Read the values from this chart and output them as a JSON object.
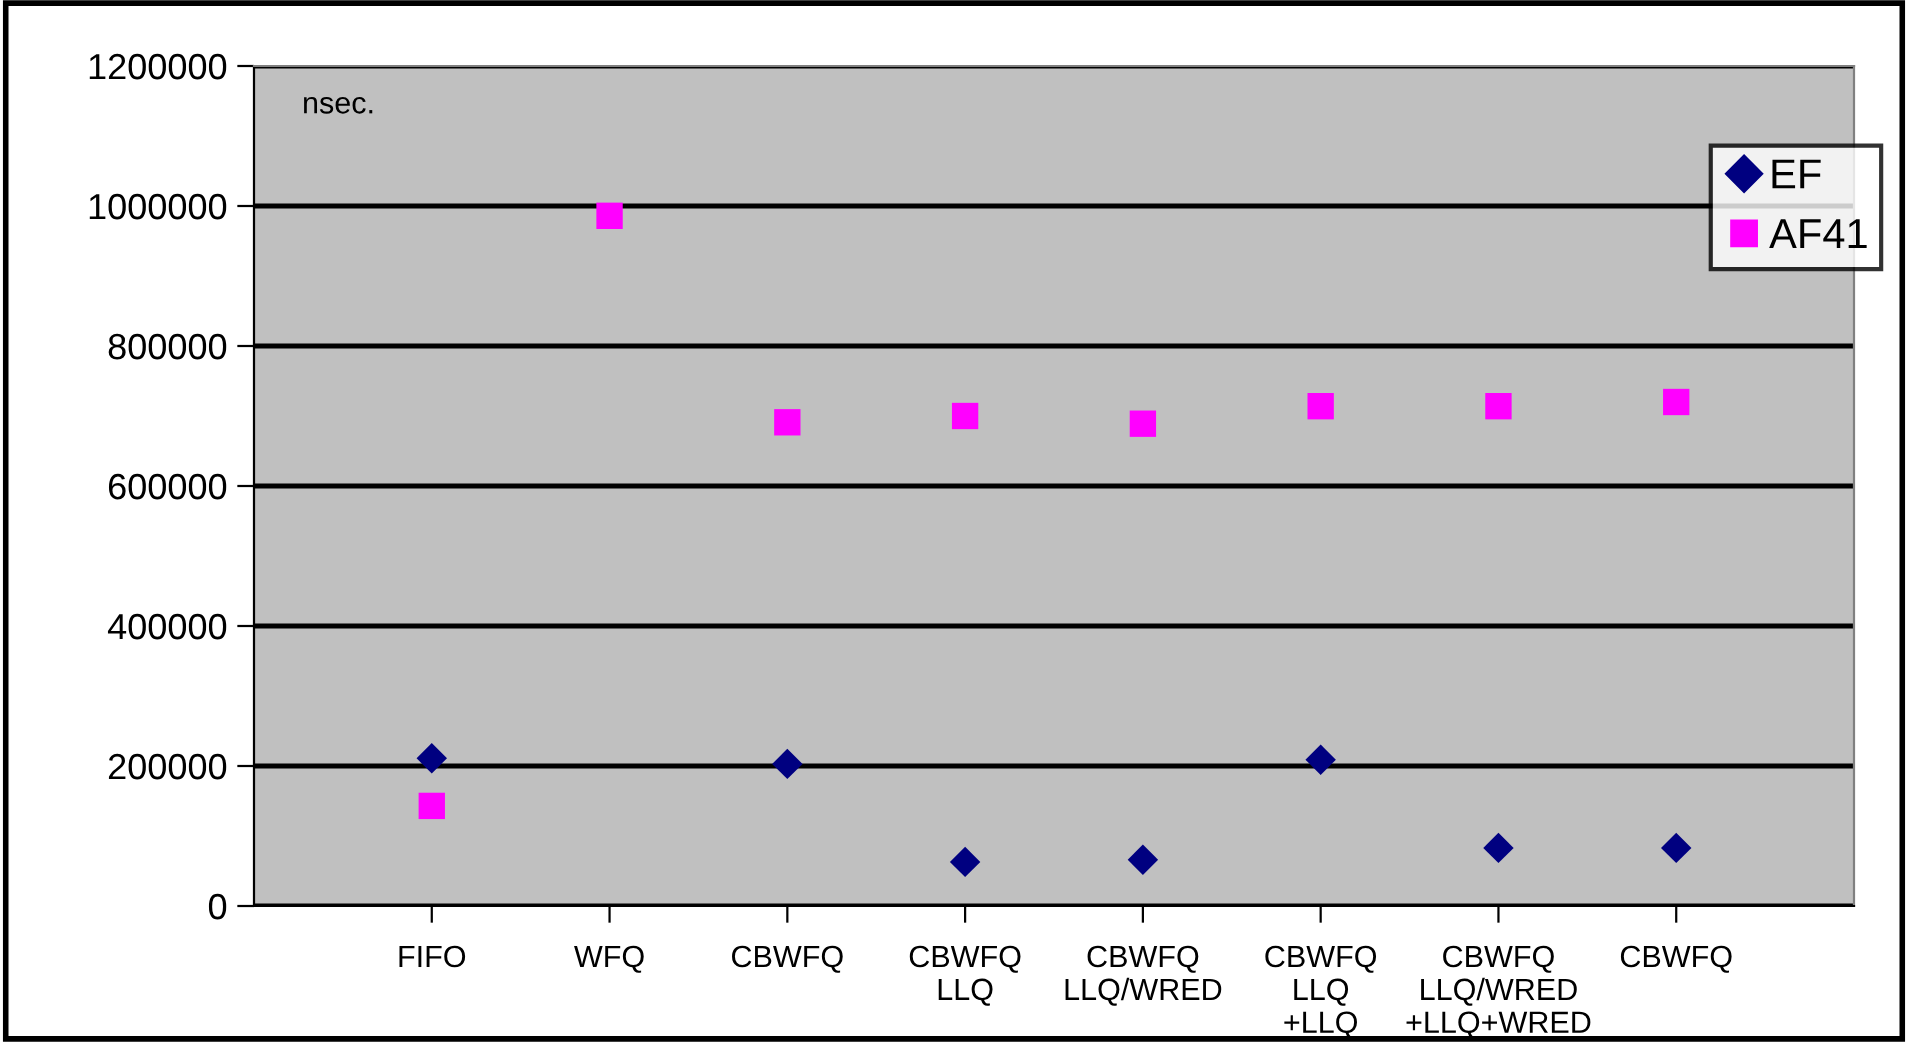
{
  "chart_data": {
    "type": "scatter",
    "categories": [
      "FIFO",
      "WFQ",
      "CBWFQ",
      "CBWFQ\nLLQ",
      "CBWFQ\nLLQ/WRED",
      "CBWFQ\nLLQ\n+LLQ",
      "CBWFQ\nLLQ/WRED\n+LLQ+WRED",
      "CBWFQ"
    ],
    "series": [
      {
        "name": "EF",
        "color": "#000080",
        "marker": "diamond",
        "values": [
          211000,
          null,
          203000,
          63000,
          66000,
          209000,
          83000,
          83000
        ]
      },
      {
        "name": "AF41",
        "color": "#ff00ff",
        "marker": "square",
        "values": [
          143000,
          986000,
          691000,
          700000,
          689000,
          714000,
          714000,
          720000
        ]
      }
    ],
    "ylim": [
      0,
      1200000
    ],
    "yticks": [
      0,
      200000,
      400000,
      600000,
      800000,
      1000000,
      1200000
    ],
    "grid": "y",
    "legend": "top right",
    "annotations": [
      "nsec."
    ]
  }
}
